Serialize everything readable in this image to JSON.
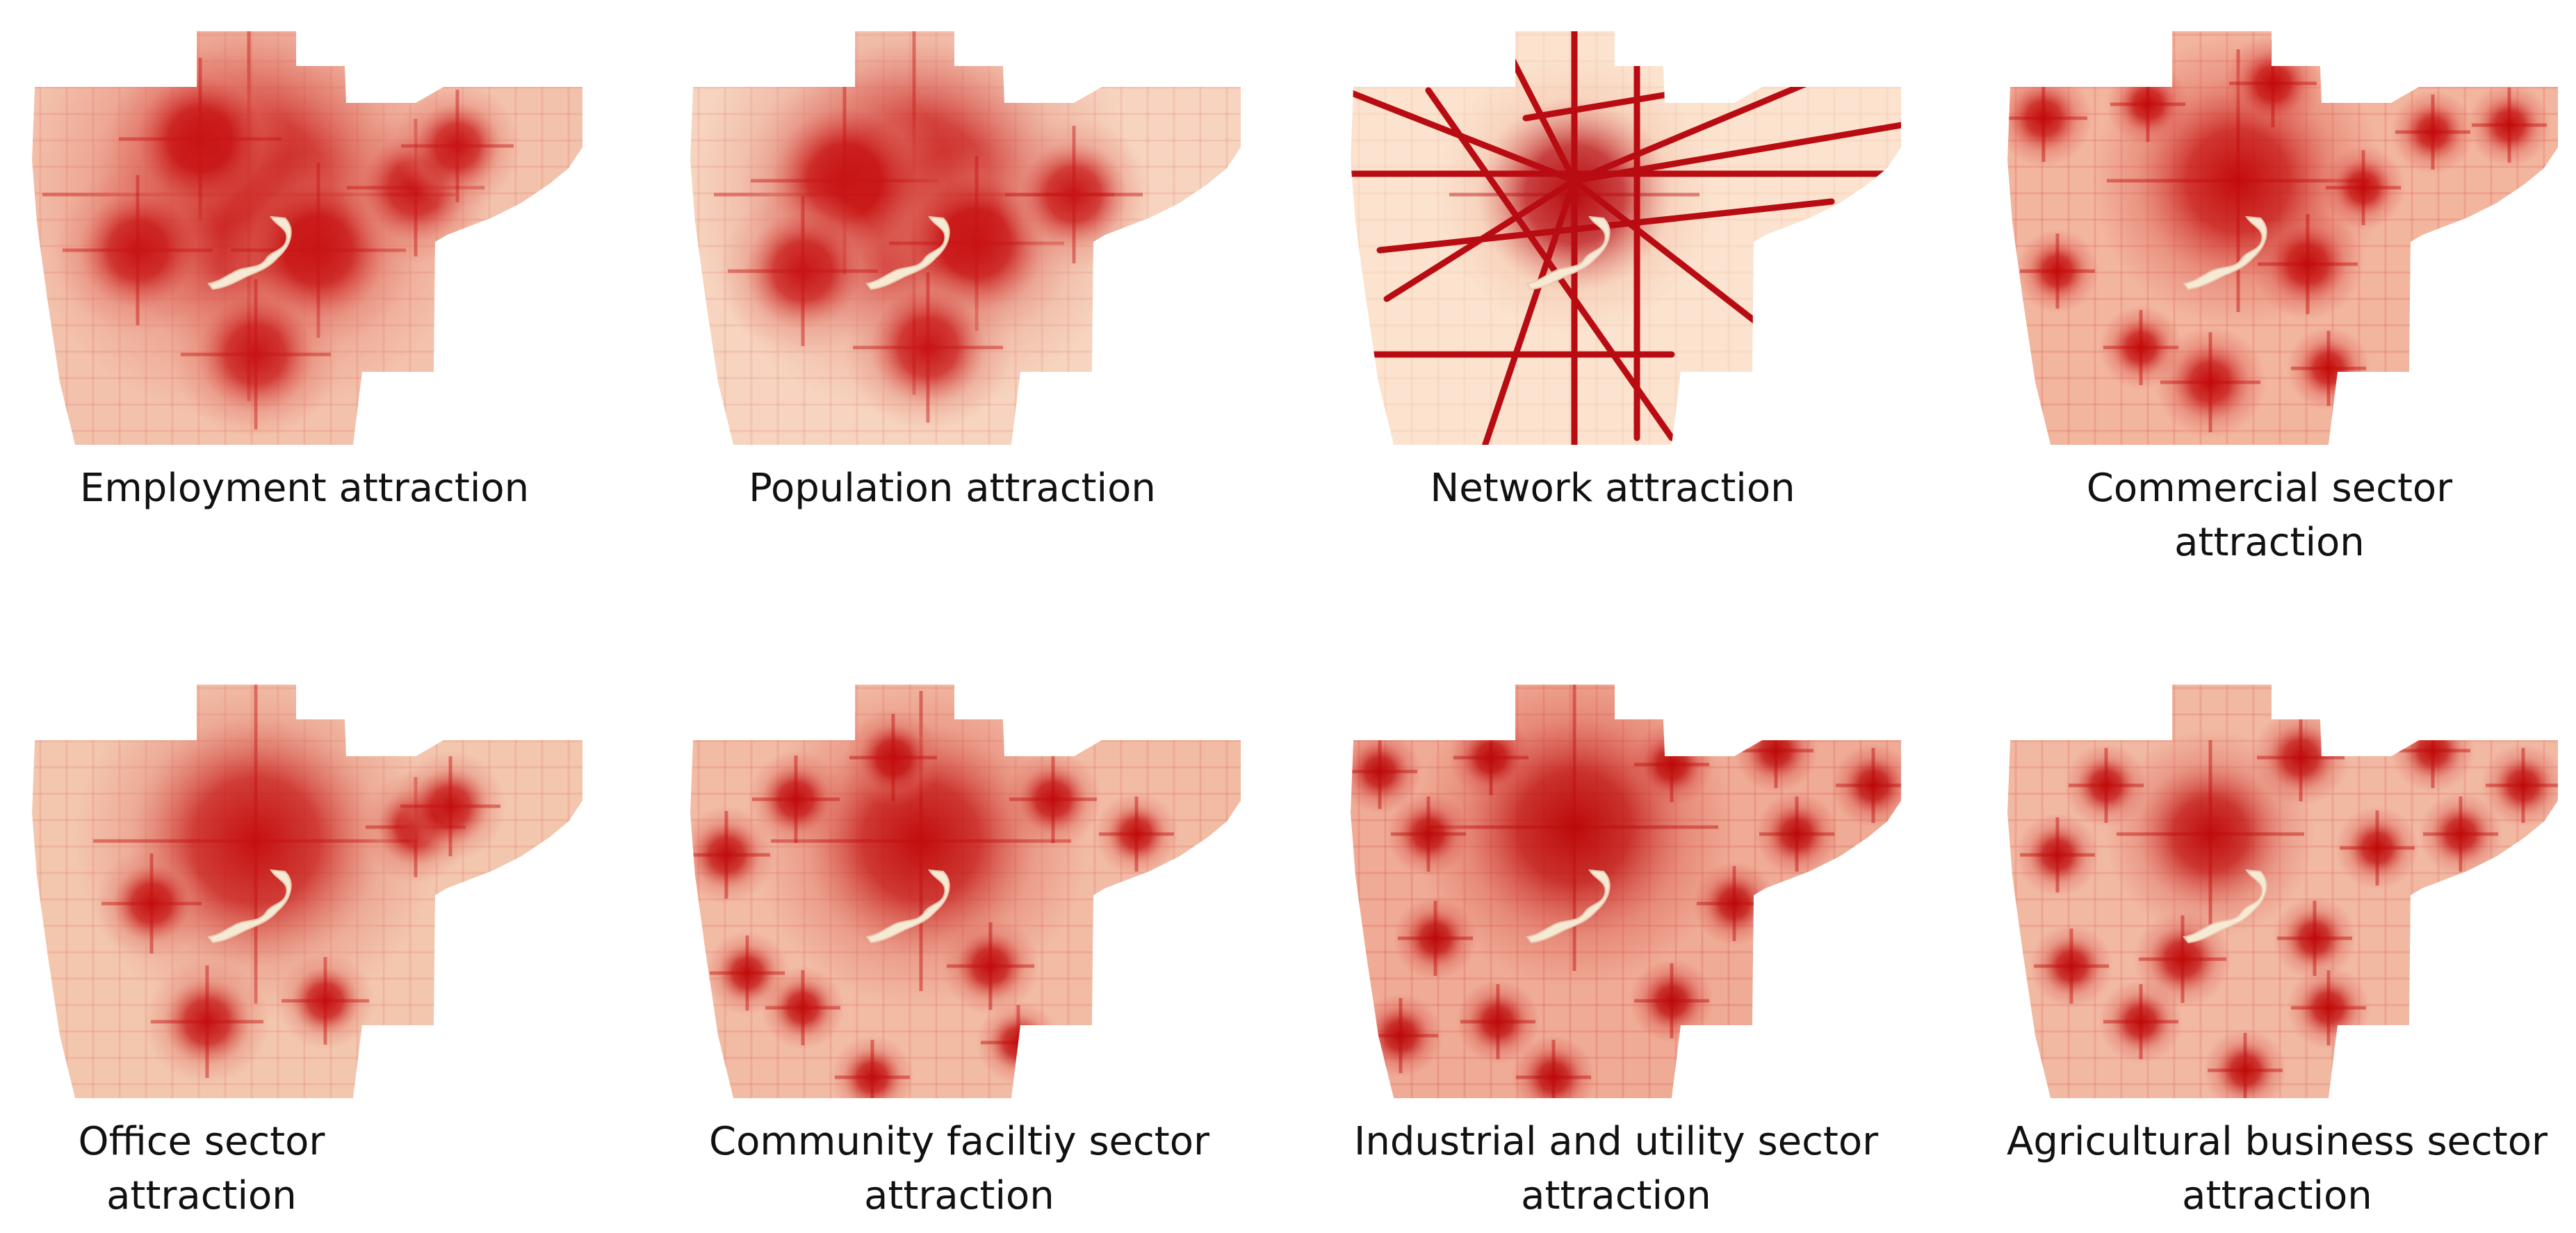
{
  "figure": {
    "panels": [
      {
        "id": "employment",
        "caption": "Employment attraction",
        "colors": {
          "base": "#f3c2ac",
          "mid": "#e3786a",
          "hot": "#c81414"
        }
      },
      {
        "id": "population",
        "caption": "Population attraction",
        "colors": {
          "base": "#f6d4bf",
          "mid": "#e58a7a",
          "hot": "#c81414"
        }
      },
      {
        "id": "network",
        "caption": "Network attraction",
        "colors": {
          "base": "#fbe3cf",
          "mid": "#f1b9a0",
          "hot": "#b80c12"
        }
      },
      {
        "id": "commercial",
        "caption": "Commercial sector\nattraction",
        "colors": {
          "base": "#f2b59e",
          "mid": "#dd5a52",
          "hot": "#c40c0c"
        }
      },
      {
        "id": "office",
        "caption": "Office sector\nattraction",
        "colors": {
          "base": "#f3c6ae",
          "mid": "#e27d6e",
          "hot": "#c51010"
        }
      },
      {
        "id": "community",
        "caption": "Community faciltiy sector\nattraction",
        "colors": {
          "base": "#f2bba4",
          "mid": "#de6a5e",
          "hot": "#c20d0d"
        }
      },
      {
        "id": "industrial",
        "caption": "Industrial and utility sector\nattraction",
        "colors": {
          "base": "#efab95",
          "mid": "#d9524c",
          "hot": "#bd0a0a"
        }
      },
      {
        "id": "agricultural",
        "caption": "Agricultural business sector\nattraction",
        "colors": {
          "base": "#f1b8a2",
          "mid": "#dd645a",
          "hot": "#c00c0c"
        }
      }
    ],
    "colors": {
      "river": "#f7ead5",
      "background": "#ffffff"
    }
  }
}
